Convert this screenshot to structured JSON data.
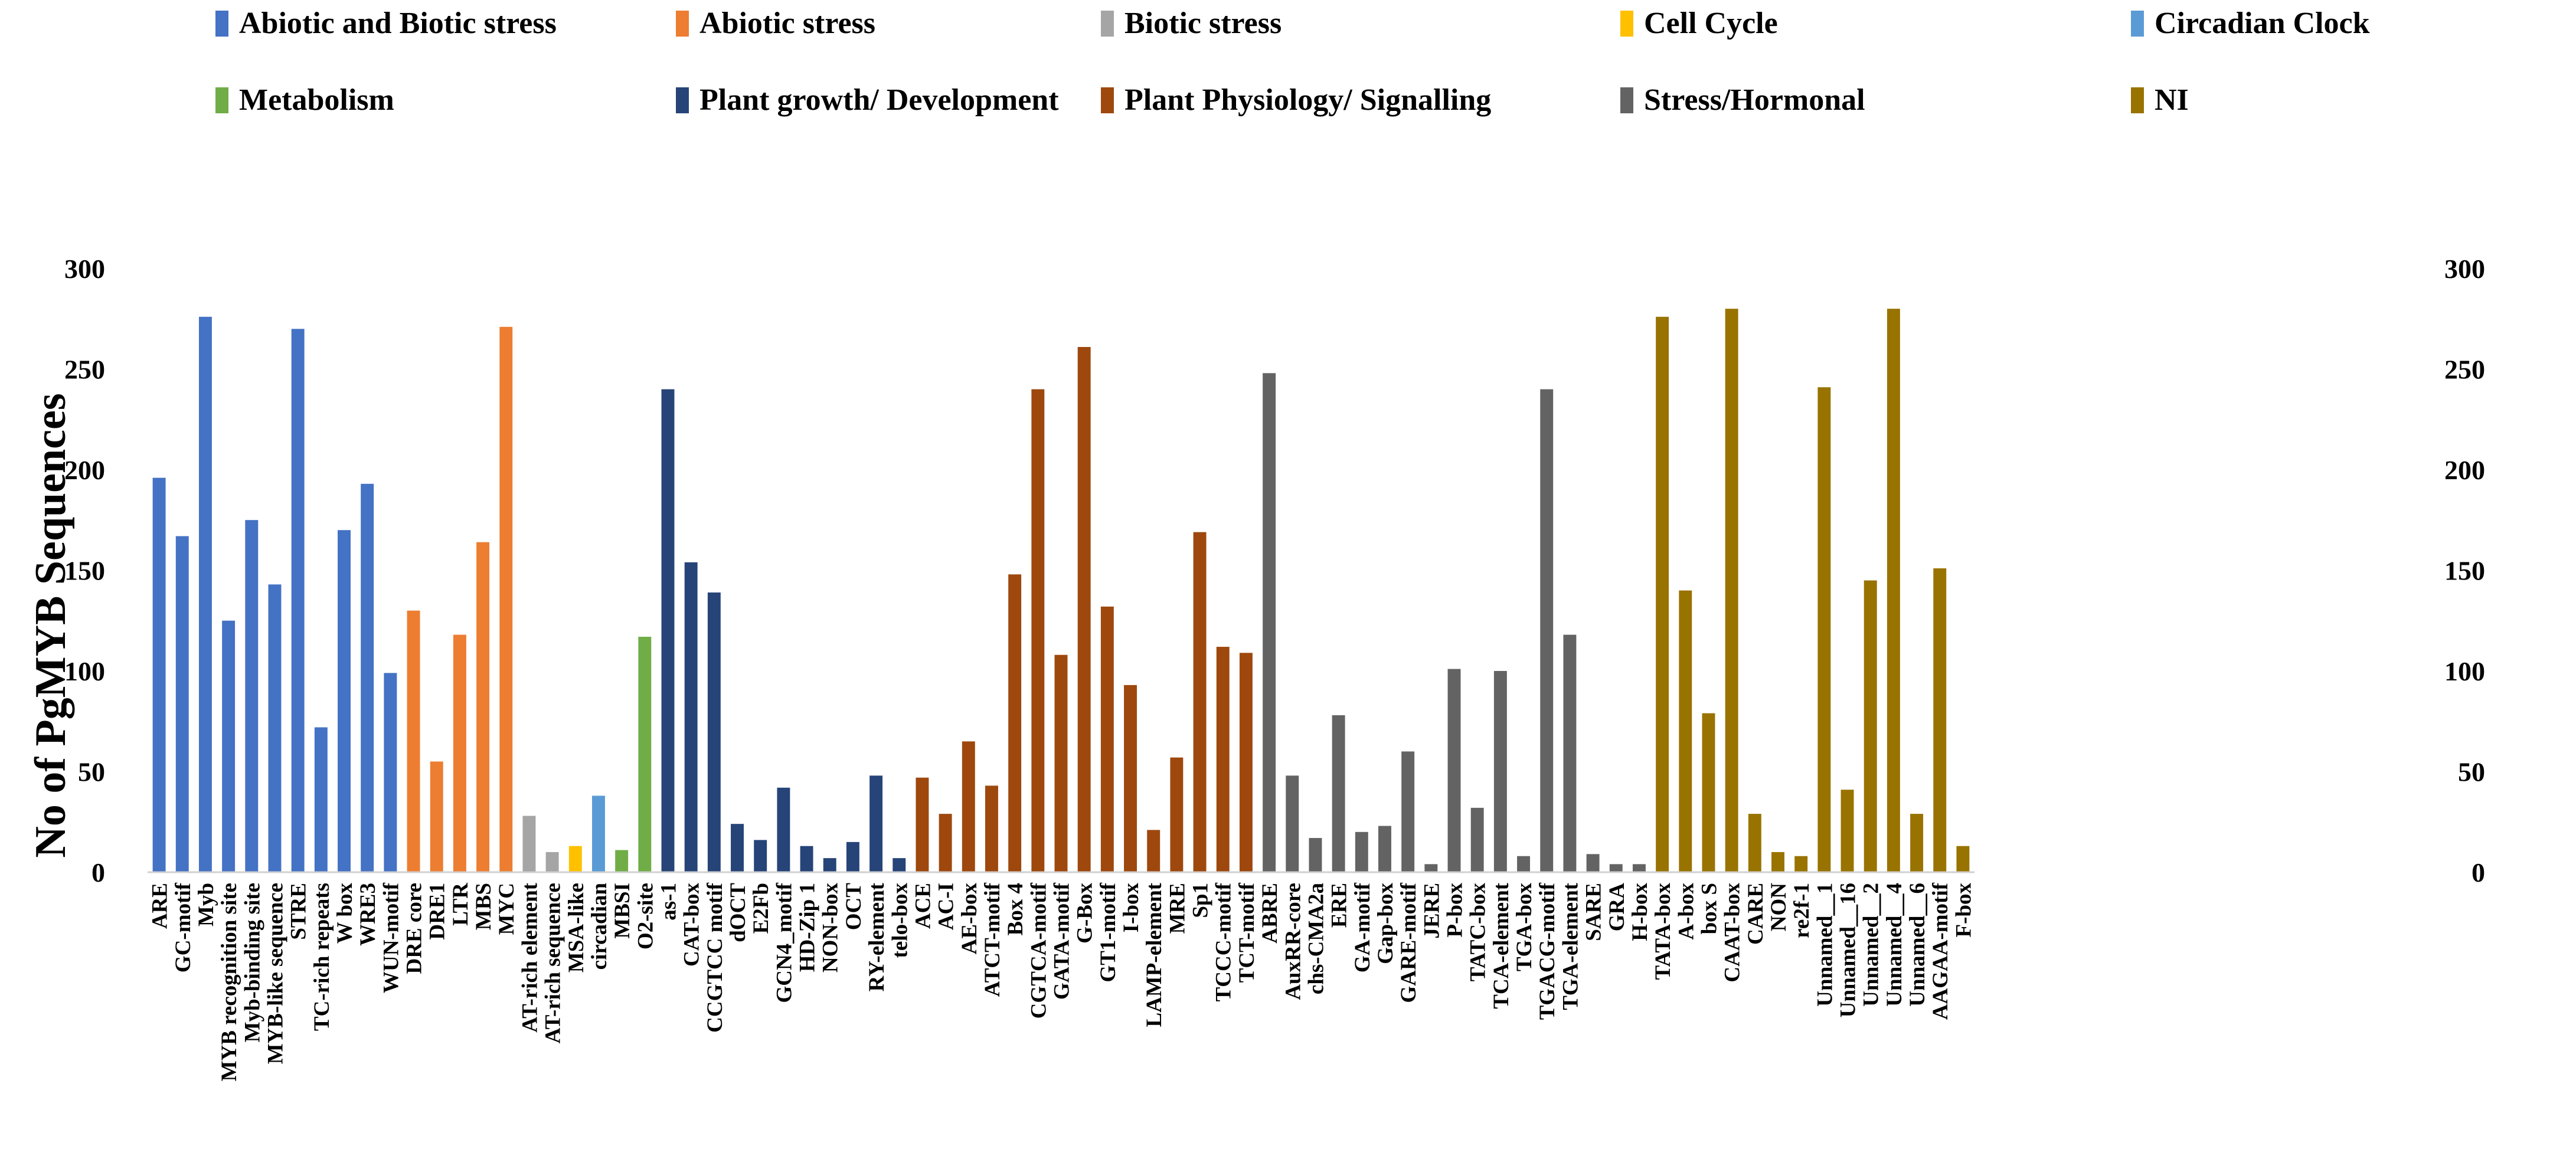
{
  "chart_data": {
    "type": "bar",
    "title": "",
    "xlabel": "",
    "ylabel": "No of PgMYB Sequences",
    "ylim": [
      0,
      300
    ],
    "yticks": [
      0,
      50,
      100,
      150,
      200,
      250,
      300
    ],
    "legend_position": "top",
    "groups": [
      {
        "name": "Abiotic and Biotic stress",
        "color": "#4472C4"
      },
      {
        "name": "Abiotic stress",
        "color": "#ED7D31"
      },
      {
        "name": "Biotic stress",
        "color": "#A5A5A5"
      },
      {
        "name": "Cell Cycle",
        "color": "#FFC000"
      },
      {
        "name": "Circadian Clock",
        "color": "#5B9BD5"
      },
      {
        "name": "Metabolism",
        "color": "#70AD47"
      },
      {
        "name": "Plant growth/ Development",
        "color": "#264478"
      },
      {
        "name": "Plant Physiology/ Signalling",
        "color": "#9E480E"
      },
      {
        "name": "Stress/Hormonal",
        "color": "#636363"
      },
      {
        "name": "NI",
        "color": "#997300"
      }
    ],
    "categories": [
      "ARE",
      "GC-motif",
      "Myb",
      "MYB recognition site",
      "Myb-binding site",
      "MYB-like sequence",
      "STRE",
      "TC-rich repeats",
      "W box",
      "WRE3",
      "WUN-motif",
      "DRE core",
      "DRE1",
      "LTR",
      "MBS",
      "MYC",
      "AT-rich element",
      "AT-rich sequence",
      "MSA-like",
      "circadian",
      "MBSI",
      "O2-site",
      "as-1",
      "CAT-box",
      "CCGTCC motif",
      "dOCT",
      "E2Fb",
      "GCN4_motif",
      "HD-Zip 1",
      "NON-box",
      "OCT",
      "RY-element",
      "telo-box",
      "ACE",
      "AC-I",
      "AE-box",
      "ATCT-motif",
      "Box 4",
      "CGTCA-motif",
      "GATA-motif",
      "G-Box",
      "GT1-motif",
      "I-box",
      "LAMP-element",
      "MRE",
      "Sp1",
      "TCCC-motif",
      "TCT-motif",
      "ABRE",
      "AuxRR-core",
      "chs-CMA2a",
      "ERE",
      "GA-motif",
      "Gap-box",
      "GARE-motif",
      "JERE",
      "P-box",
      "TATC-box",
      "TCA-element",
      "TGA-box",
      "TGACG-motif",
      "TGA-element",
      "SARE",
      "GRA",
      "H-box",
      "TATA-box",
      "A-box",
      "box S",
      "CAAT-box",
      "CARE",
      "NON",
      "re2f-1",
      "Unnamed__1",
      "Unnamed__16",
      "Unnamed__2",
      "Unnamed__4",
      "Unnamed__6",
      "AAGAA-motif",
      "F-box"
    ],
    "values": [
      196,
      167,
      276,
      125,
      175,
      143,
      270,
      72,
      170,
      193,
      99,
      130,
      55,
      118,
      164,
      271,
      28,
      10,
      13,
      38,
      11,
      117,
      240,
      154,
      139,
      24,
      16,
      42,
      13,
      7,
      15,
      48,
      7,
      47,
      29,
      65,
      43,
      148,
      240,
      108,
      261,
      132,
      93,
      21,
      57,
      169,
      112,
      109,
      248,
      48,
      17,
      78,
      20,
      23,
      60,
      4,
      101,
      32,
      100,
      8,
      240,
      118,
      9,
      4,
      4,
      276,
      140,
      79,
      280,
      29,
      10,
      8,
      241,
      41,
      145,
      280,
      29,
      151,
      13
    ],
    "group_index": [
      0,
      0,
      0,
      0,
      0,
      0,
      0,
      0,
      0,
      0,
      0,
      1,
      1,
      1,
      1,
      1,
      2,
      2,
      3,
      4,
      5,
      5,
      6,
      6,
      6,
      6,
      6,
      6,
      6,
      6,
      6,
      6,
      6,
      7,
      7,
      7,
      7,
      7,
      7,
      7,
      7,
      7,
      7,
      7,
      7,
      7,
      7,
      7,
      8,
      8,
      8,
      8,
      8,
      8,
      8,
      8,
      8,
      8,
      8,
      8,
      8,
      8,
      8,
      8,
      8,
      9,
      9,
      9,
      9,
      9,
      9,
      9,
      9,
      9,
      9,
      9,
      9,
      9,
      9
    ]
  }
}
